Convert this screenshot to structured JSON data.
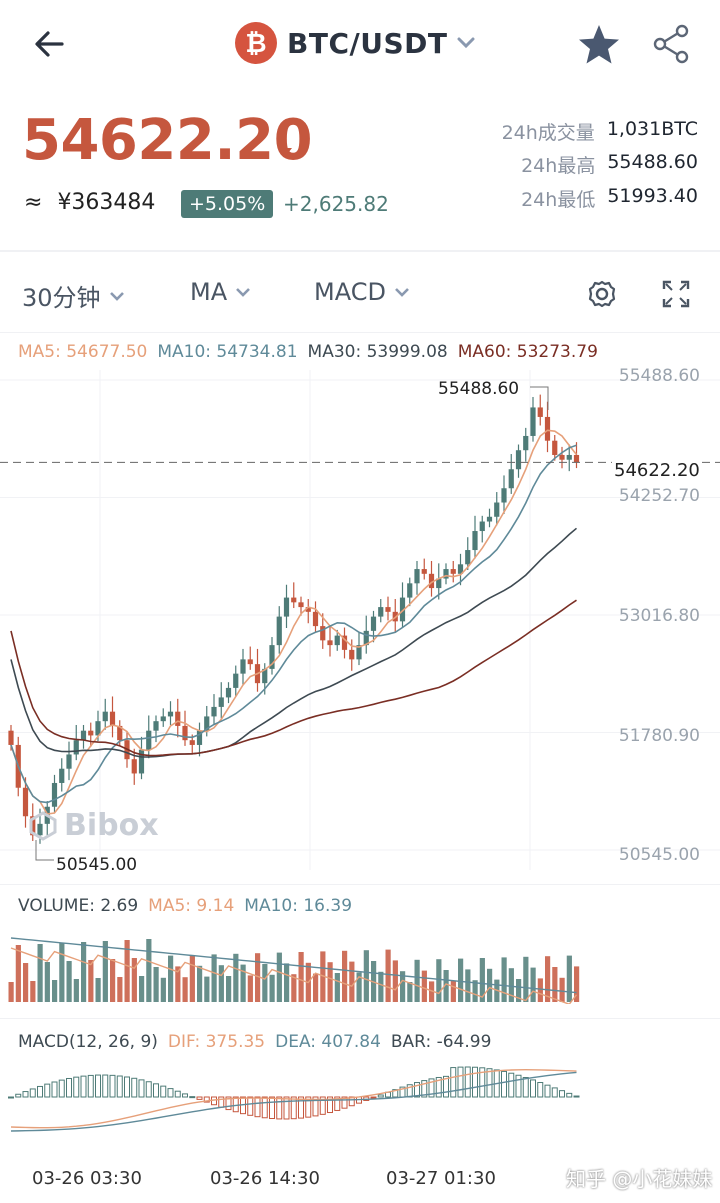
{
  "header": {
    "pair": "BTC/USDT",
    "coin_symbol": "₿"
  },
  "ticker": {
    "last_price": "54622.20",
    "cny_prefix": "≈",
    "cny_value": "¥363484",
    "change_pct": "+5.05%",
    "change_abs": "+2,625.82",
    "stats": [
      {
        "label": "24h成交量",
        "value": "1,031BTC"
      },
      {
        "label": "24h最高",
        "value": "55488.60"
      },
      {
        "label": "24h最低",
        "value": "51993.40"
      }
    ]
  },
  "toolbar": {
    "interval": "30分钟",
    "main_indicator": "MA",
    "sub_indicator": "MACD"
  },
  "ma_legend": [
    {
      "text": "MA5: 54677.50",
      "color": "#e6a07a"
    },
    {
      "text": "MA10: 54734.81",
      "color": "#5f8a99"
    },
    {
      "text": "MA30: 53999.08",
      "color": "#3e4a52"
    },
    {
      "text": "MA60: 53273.79",
      "color": "#7a2e24"
    }
  ],
  "price_axis": [
    "55488.60",
    "54252.70",
    "53016.80",
    "51780.90",
    "50545.00"
  ],
  "current_price_label": "54622.20",
  "high_callout": "55488.60",
  "low_callout": "50545.00",
  "brand_watermark": "Bibox",
  "volume_legend": [
    {
      "text": "VOLUME: 2.69",
      "color": "#3e4a52"
    },
    {
      "text": "MA5: 9.14",
      "color": "#e6a07a"
    },
    {
      "text": "MA10: 16.39",
      "color": "#5f8a99"
    }
  ],
  "macd_legend": [
    {
      "text": "MACD(12, 26, 9)",
      "color": "#3e4a52"
    },
    {
      "text": "DIF: 375.35",
      "color": "#e6a07a"
    },
    {
      "text": "DEA: 407.84",
      "color": "#5f8a99"
    },
    {
      "text": "BAR: -64.99",
      "color": "#3e4a52"
    }
  ],
  "time_axis": [
    "03-26 03:30",
    "03-26 14:30",
    "03-27 01:30"
  ],
  "footer_watermark": "知乎 @小花妹妹",
  "colors": {
    "up": "#4e7b77",
    "down": "#c5573e",
    "price": "#c5573e",
    "ma5": "#e6a07a",
    "ma10": "#5f8a99",
    "ma30": "#3e4a52",
    "ma60": "#7a2e24"
  },
  "chart_data": {
    "type": "candlestick",
    "interval": "30m",
    "ylim": [
      50545.0,
      55488.6
    ],
    "y_ticks": [
      55488.6,
      54252.7,
      53016.8,
      51780.9,
      50545.0
    ],
    "high": 55488.6,
    "low": 50545.0,
    "last": 54622.2,
    "x_tick_labels": [
      "03-26 03:30",
      "03-26 14:30",
      "03-27 01:30"
    ],
    "close_series": [
      51650,
      51200,
      50900,
      50700,
      50820,
      51000,
      51250,
      51400,
      51550,
      51700,
      51800,
      51750,
      51900,
      52000,
      51850,
      51700,
      51500,
      51350,
      51600,
      51800,
      51900,
      51950,
      52000,
      51850,
      51700,
      51650,
      51800,
      51950,
      52050,
      52150,
      52250,
      52400,
      52550,
      52500,
      52300,
      52450,
      52700,
      53000,
      53200,
      53150,
      53100,
      53050,
      52900,
      52750,
      52700,
      52800,
      52650,
      52550,
      52700,
      52850,
      53000,
      53100,
      53050,
      52950,
      53200,
      53350,
      53500,
      53450,
      53300,
      53400,
      53500,
      53450,
      53550,
      53700,
      53900,
      54000,
      54050,
      54200,
      54350,
      54550,
      54750,
      54900,
      55200,
      55100,
      54850,
      54700,
      54650,
      54700,
      54622.2
    ]
  }
}
